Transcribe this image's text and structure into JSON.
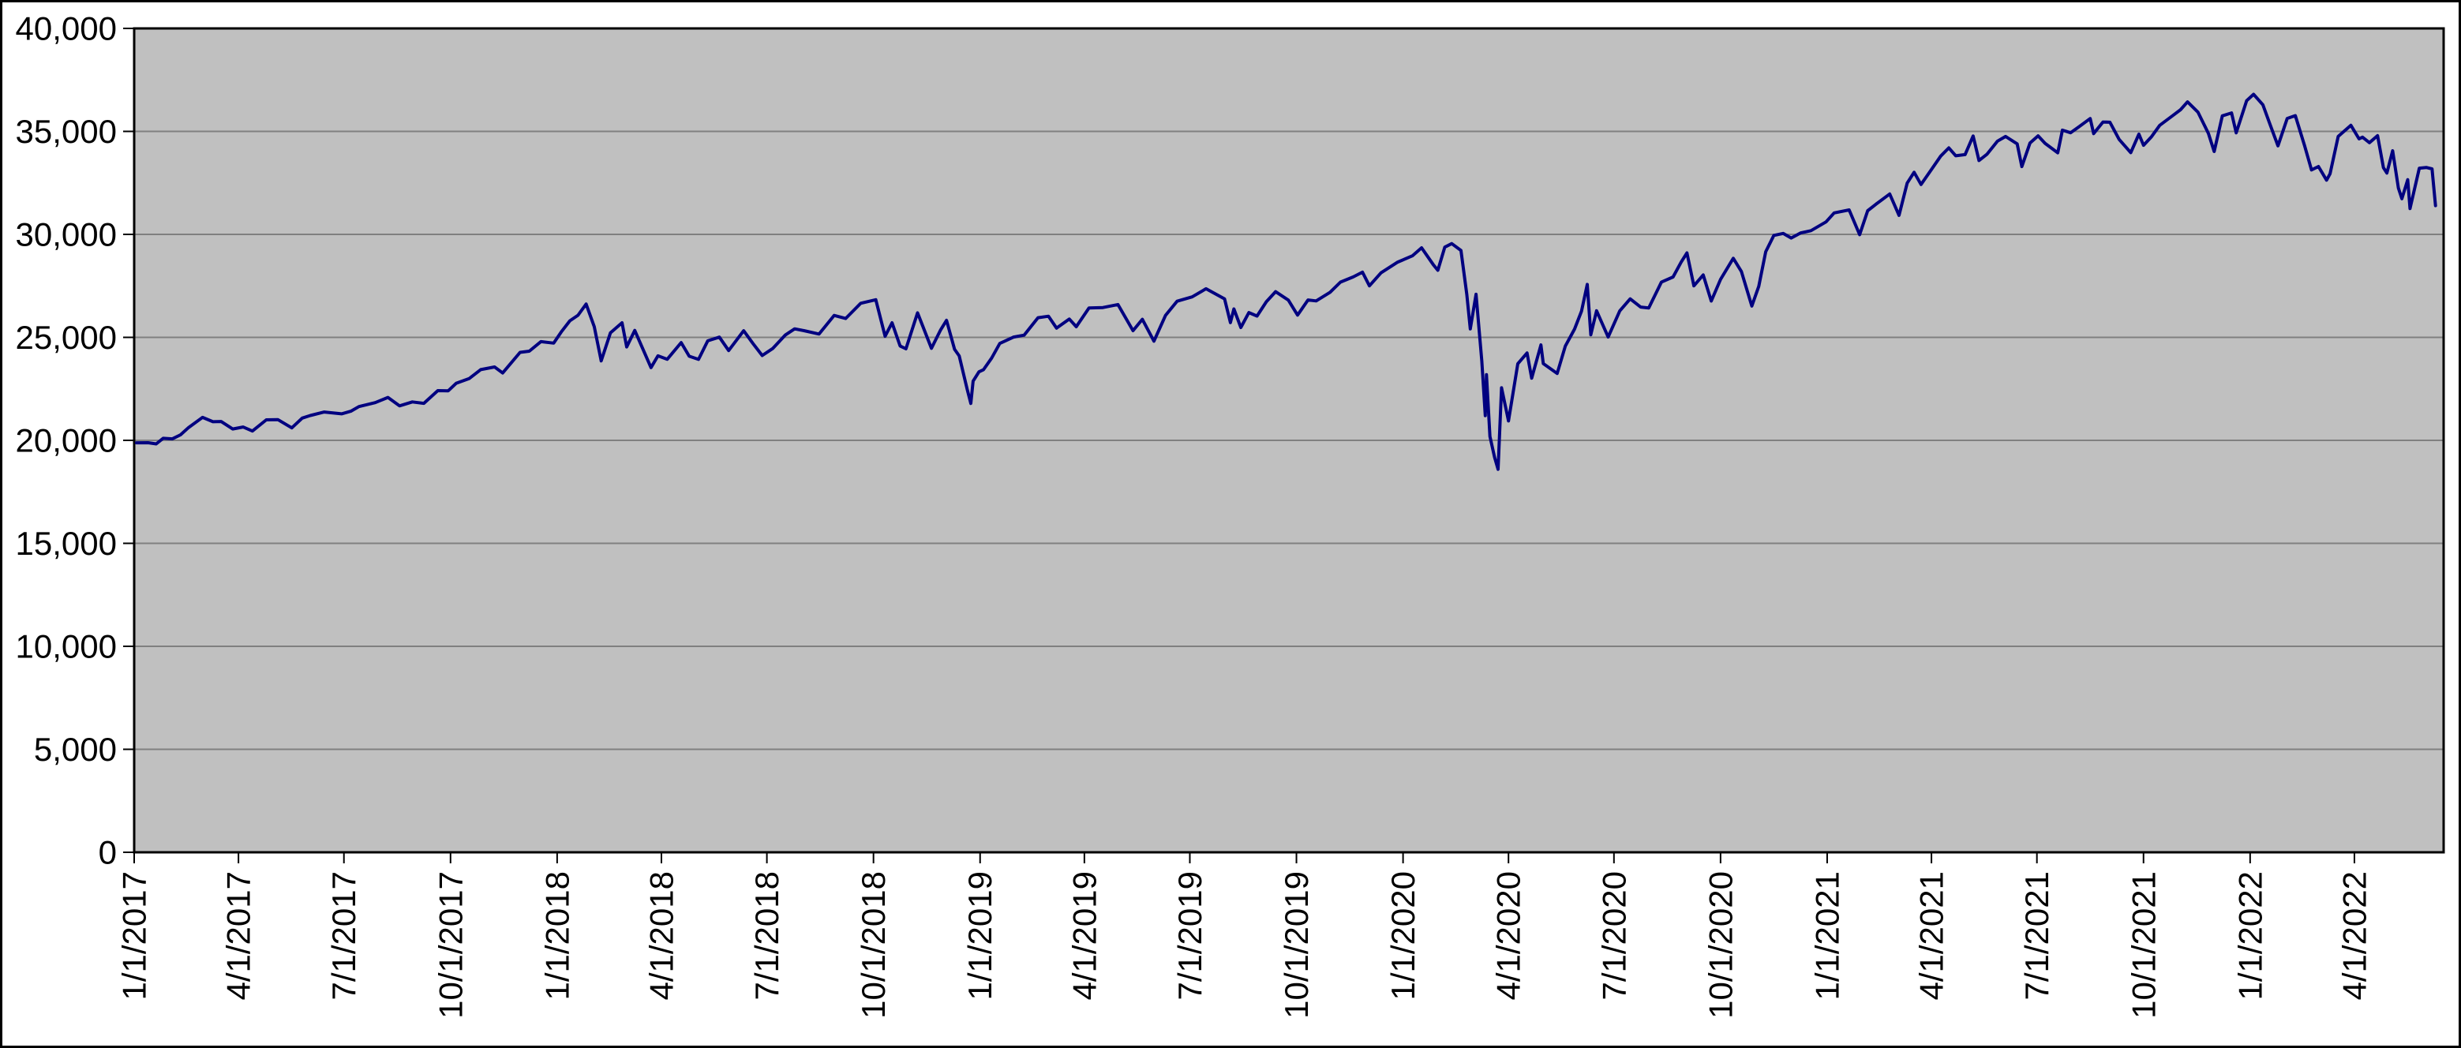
{
  "chart_style": {
    "outer_bg": "#ffffff",
    "plot_bg": "#c0c0c0",
    "grid_color": "#808080",
    "axis_color": "#000000",
    "line_color": "#000080"
  },
  "chart_data": {
    "type": "line",
    "title": "",
    "xlabel": "",
    "ylabel": "",
    "grid": true,
    "legend_position": "none",
    "ylim": [
      0,
      40000
    ],
    "ytick_step": 5000,
    "ytick_labels": [
      "0",
      "5,000",
      "10,000",
      "15,000",
      "20,000",
      "25,000",
      "30,000",
      "35,000",
      "40,000"
    ],
    "x_domain": [
      "1/1/2017",
      "6/17/2022"
    ],
    "xtick_labels": [
      "1/1/2017",
      "4/1/2017",
      "7/1/2017",
      "10/1/2017",
      "1/1/2018",
      "4/1/2018",
      "7/1/2018",
      "10/1/2018",
      "1/1/2019",
      "4/1/2019",
      "7/1/2019",
      "10/1/2019",
      "1/1/2020",
      "4/1/2020",
      "7/1/2020",
      "10/1/2020",
      "1/1/2021",
      "4/1/2021",
      "7/1/2021",
      "10/1/2021",
      "1/1/2022",
      "4/1/2022"
    ],
    "series": [
      {
        "name": "",
        "color": "#000080",
        "data": [
          [
            "1/3/2017",
            19882
          ],
          [
            "1/13/2017",
            19886
          ],
          [
            "1/20/2017",
            19827
          ],
          [
            "1/26/2017",
            20101
          ],
          [
            "2/3/2017",
            20071
          ],
          [
            "2/10/2017",
            20269
          ],
          [
            "2/17/2017",
            20624
          ],
          [
            "3/1/2017",
            21115
          ],
          [
            "3/10/2017",
            20903
          ],
          [
            "3/17/2017",
            20915
          ],
          [
            "3/27/2017",
            20551
          ],
          [
            "4/5/2017",
            20648
          ],
          [
            "4/13/2017",
            20453
          ],
          [
            "4/25/2017",
            20996
          ],
          [
            "5/5/2017",
            21007
          ],
          [
            "5/17/2017",
            20607
          ],
          [
            "5/26/2017",
            21080
          ],
          [
            "6/2/2017",
            21206
          ],
          [
            "6/14/2017",
            21375
          ],
          [
            "6/29/2017",
            21287
          ],
          [
            "7/7/2017",
            21414
          ],
          [
            "7/14/2017",
            21638
          ],
          [
            "7/28/2017",
            21830
          ],
          [
            "8/8/2017",
            22085
          ],
          [
            "8/18/2017",
            21675
          ],
          [
            "8/29/2017",
            21865
          ],
          [
            "9/8/2017",
            21798
          ],
          [
            "9/20/2017",
            22413
          ],
          [
            "9/29/2017",
            22405
          ],
          [
            "10/6/2017",
            22774
          ],
          [
            "10/17/2017",
            22997
          ],
          [
            "10/27/2017",
            23434
          ],
          [
            "11/8/2017",
            23563
          ],
          [
            "11/15/2017",
            23271
          ],
          [
            "11/30/2017",
            24272
          ],
          [
            "12/8/2017",
            24329
          ],
          [
            "12/18/2017",
            24792
          ],
          [
            "12/29/2017",
            24719
          ],
          [
            "1/5/2018",
            25296
          ],
          [
            "1/12/2018",
            25803
          ],
          [
            "1/19/2018",
            26072
          ],
          [
            "1/26/2018",
            26617
          ],
          [
            "2/2/2018",
            25521
          ],
          [
            "2/8/2018",
            23860
          ],
          [
            "2/16/2018",
            25219
          ],
          [
            "2/26/2018",
            25709
          ],
          [
            "3/2/2018",
            24538
          ],
          [
            "3/9/2018",
            25336
          ],
          [
            "3/23/2018",
            23533
          ],
          [
            "3/29/2018",
            24103
          ],
          [
            "4/6/2018",
            23933
          ],
          [
            "4/18/2018",
            24748
          ],
          [
            "4/25/2018",
            24084
          ],
          [
            "5/3/2018",
            23931
          ],
          [
            "5/11/2018",
            24831
          ],
          [
            "5/21/2018",
            25013
          ],
          [
            "5/29/2018",
            24361
          ],
          [
            "6/11/2018",
            25322
          ],
          [
            "6/19/2018",
            24700
          ],
          [
            "6/27/2018",
            24118
          ],
          [
            "7/6/2018",
            24456
          ],
          [
            "7/17/2018",
            25120
          ],
          [
            "7/25/2018",
            25414
          ],
          [
            "8/2/2018",
            25327
          ],
          [
            "8/15/2018",
            25162
          ],
          [
            "8/28/2018",
            26064
          ],
          [
            "9/7/2018",
            25917
          ],
          [
            "9/20/2018",
            26657
          ],
          [
            "10/3/2018",
            26828
          ],
          [
            "10/11/2018",
            25053
          ],
          [
            "10/17/2018",
            25707
          ],
          [
            "10/24/2018",
            24584
          ],
          [
            "10/29/2018",
            24443
          ],
          [
            "11/8/2018",
            26191
          ],
          [
            "11/20/2018",
            24466
          ],
          [
            "11/28/2018",
            25366
          ],
          [
            "12/3/2018",
            25826
          ],
          [
            "12/10/2018",
            24423
          ],
          [
            "12/14/2018",
            24101
          ],
          [
            "12/21/2018",
            22445
          ],
          [
            "12/24/2018",
            21792
          ],
          [
            "12/26/2018",
            22878
          ],
          [
            "12/31/2018",
            23327
          ],
          [
            "1/4/2019",
            23433
          ],
          [
            "1/11/2019",
            23996
          ],
          [
            "1/18/2019",
            24706
          ],
          [
            "1/30/2019",
            25015
          ],
          [
            "2/8/2019",
            25106
          ],
          [
            "2/20/2019",
            25954
          ],
          [
            "3/1/2019",
            26026
          ],
          [
            "3/8/2019",
            25450
          ],
          [
            "3/19/2019",
            25887
          ],
          [
            "3/25/2019",
            25517
          ],
          [
            "4/5/2019",
            26425
          ],
          [
            "4/17/2019",
            26449
          ],
          [
            "4/30/2019",
            26593
          ],
          [
            "5/13/2019",
            25325
          ],
          [
            "5/21/2019",
            25877
          ],
          [
            "5/31/2019",
            24815
          ],
          [
            "6/10/2019",
            26063
          ],
          [
            "6/20/2019",
            26753
          ],
          [
            "7/3/2019",
            26966
          ],
          [
            "7/15/2019",
            27359
          ],
          [
            "7/31/2019",
            26864
          ],
          [
            "8/5/2019",
            25718
          ],
          [
            "8/8/2019",
            26378
          ],
          [
            "8/14/2019",
            25479
          ],
          [
            "8/21/2019",
            26202
          ],
          [
            "8/28/2019",
            26036
          ],
          [
            "9/5/2019",
            26728
          ],
          [
            "9/13/2019",
            27219
          ],
          [
            "9/24/2019",
            26808
          ],
          [
            "10/2/2019",
            26079
          ],
          [
            "10/11/2019",
            26817
          ],
          [
            "10/18/2019",
            26770
          ],
          [
            "10/30/2019",
            27187
          ],
          [
            "11/8/2019",
            27681
          ],
          [
            "11/19/2019",
            27934
          ],
          [
            "11/27/2019",
            28164
          ],
          [
            "12/3/2019",
            27503
          ],
          [
            "12/13/2019",
            28135
          ],
          [
            "12/27/2019",
            28645
          ],
          [
            "1/9/2020",
            28957
          ],
          [
            "1/17/2020",
            29348
          ],
          [
            "1/27/2020",
            28536
          ],
          [
            "1/31/2020",
            28256
          ],
          [
            "2/6/2020",
            29380
          ],
          [
            "2/12/2020",
            29551
          ],
          [
            "2/20/2020",
            29220
          ],
          [
            "2/25/2020",
            27081
          ],
          [
            "2/28/2020",
            25409
          ],
          [
            "3/4/2020",
            27091
          ],
          [
            "3/9/2020",
            23851
          ],
          [
            "3/12/2020",
            21200
          ],
          [
            "3/13/2020",
            23186
          ],
          [
            "3/16/2020",
            20188
          ],
          [
            "3/20/2020",
            19174
          ],
          [
            "3/23/2020",
            18592
          ],
          [
            "3/26/2020",
            22552
          ],
          [
            "4/1/2020",
            20944
          ],
          [
            "4/9/2020",
            23719
          ],
          [
            "4/17/2020",
            24242
          ],
          [
            "4/21/2020",
            23019
          ],
          [
            "4/29/2020",
            24634
          ],
          [
            "5/1/2020",
            23724
          ],
          [
            "5/13/2020",
            23248
          ],
          [
            "5/20/2020",
            24576
          ],
          [
            "5/28/2020",
            25401
          ],
          [
            "6/3/2020",
            26270
          ],
          [
            "6/8/2020",
            27572
          ],
          [
            "6/11/2020",
            25128
          ],
          [
            "6/16/2020",
            26290
          ],
          [
            "6/26/2020",
            25016
          ],
          [
            "7/6/2020",
            26287
          ],
          [
            "7/15/2020",
            26870
          ],
          [
            "7/24/2020",
            26470
          ],
          [
            "7/31/2020",
            26428
          ],
          [
            "8/11/2020",
            27687
          ],
          [
            "8/21/2020",
            27930
          ],
          [
            "8/28/2020",
            28654
          ],
          [
            "9/2/2020",
            29101
          ],
          [
            "9/8/2020",
            27501
          ],
          [
            "9/16/2020",
            28032
          ],
          [
            "9/23/2020",
            26763
          ],
          [
            "10/1/2020",
            27817
          ],
          [
            "10/12/2020",
            28838
          ],
          [
            "10/19/2020",
            28196
          ],
          [
            "10/28/2020",
            26520
          ],
          [
            "11/3/2020",
            27480
          ],
          [
            "11/9/2020",
            29158
          ],
          [
            "11/16/2020",
            29950
          ],
          [
            "11/24/2020",
            30046
          ],
          [
            "12/1/2020",
            29824
          ],
          [
            "12/9/2020",
            30069
          ],
          [
            "12/18/2020",
            30179
          ],
          [
            "12/31/2020",
            30606
          ],
          [
            "1/7/2021",
            31041
          ],
          [
            "1/20/2021",
            31188
          ],
          [
            "1/29/2021",
            29983
          ],
          [
            "2/5/2021",
            31148
          ],
          [
            "2/12/2021",
            31458
          ],
          [
            "2/24/2021",
            31962
          ],
          [
            "3/4/2021",
            30924
          ],
          [
            "3/11/2021",
            32486
          ],
          [
            "3/17/2021",
            33015
          ],
          [
            "3/23/2021",
            32423
          ],
          [
            "4/1/2021",
            33153
          ],
          [
            "4/9/2021",
            33801
          ],
          [
            "4/16/2021",
            34201
          ],
          [
            "4/22/2021",
            33815
          ],
          [
            "4/30/2021",
            33875
          ],
          [
            "5/7/2021",
            34778
          ],
          [
            "5/12/2021",
            33588
          ],
          [
            "5/19/2021",
            33896
          ],
          [
            "5/28/2021",
            34529
          ],
          [
            "6/4/2021",
            34756
          ],
          [
            "6/14/2021",
            34394
          ],
          [
            "6/18/2021",
            33290
          ],
          [
            "6/25/2021",
            34434
          ],
          [
            "7/2/2021",
            34786
          ],
          [
            "7/8/2021",
            34422
          ],
          [
            "7/19/2021",
            33962
          ],
          [
            "7/23/2021",
            35062
          ],
          [
            "7/30/2021",
            34935
          ],
          [
            "8/6/2021",
            35209
          ],
          [
            "8/16/2021",
            35625
          ],
          [
            "8/19/2021",
            34894
          ],
          [
            "8/27/2021",
            35456
          ],
          [
            "9/2/2021",
            35444
          ],
          [
            "9/10/2021",
            34608
          ],
          [
            "9/20/2021",
            33970
          ],
          [
            "9/27/2021",
            34869
          ],
          [
            "10/1/2021",
            34326
          ],
          [
            "10/8/2021",
            34746
          ],
          [
            "10/15/2021",
            35295
          ],
          [
            "10/26/2021",
            35757
          ],
          [
            "11/2/2021",
            36053
          ],
          [
            "11/8/2021",
            36432
          ],
          [
            "11/17/2021",
            35931
          ],
          [
            "11/26/2021",
            34899
          ],
          [
            "12/1/2021",
            34022
          ],
          [
            "12/8/2021",
            35755
          ],
          [
            "12/16/2021",
            35898
          ],
          [
            "12/20/2021",
            34932
          ],
          [
            "12/29/2021",
            36489
          ],
          [
            "1/4/2022",
            36800
          ],
          [
            "1/12/2022",
            36290
          ],
          [
            "1/18/2022",
            35369
          ],
          [
            "1/25/2022",
            34297
          ],
          [
            "2/2/2022",
            35629
          ],
          [
            "2/9/2022",
            35768
          ],
          [
            "2/17/2022",
            34312
          ],
          [
            "2/23/2022",
            33132
          ],
          [
            "3/1/2022",
            33295
          ],
          [
            "3/8/2022",
            32632
          ],
          [
            "3/11/2022",
            32944
          ],
          [
            "3/18/2022",
            34755
          ],
          [
            "3/29/2022",
            35294
          ],
          [
            "4/5/2022",
            34641
          ],
          [
            "4/8/2022",
            34721
          ],
          [
            "4/14/2022",
            34451
          ],
          [
            "4/21/2022",
            34793
          ],
          [
            "4/26/2022",
            33240
          ],
          [
            "4/29/2022",
            32977
          ],
          [
            "5/4/2022",
            34061
          ],
          [
            "5/9/2022",
            32246
          ],
          [
            "5/12/2022",
            31730
          ],
          [
            "5/17/2022",
            32655
          ],
          [
            "5/19/2022",
            31253
          ],
          [
            "5/27/2022",
            33213
          ],
          [
            "6/2/2022",
            33248
          ],
          [
            "6/7/2022",
            33180
          ],
          [
            "6/10/2022",
            31393
          ]
        ]
      }
    ]
  }
}
